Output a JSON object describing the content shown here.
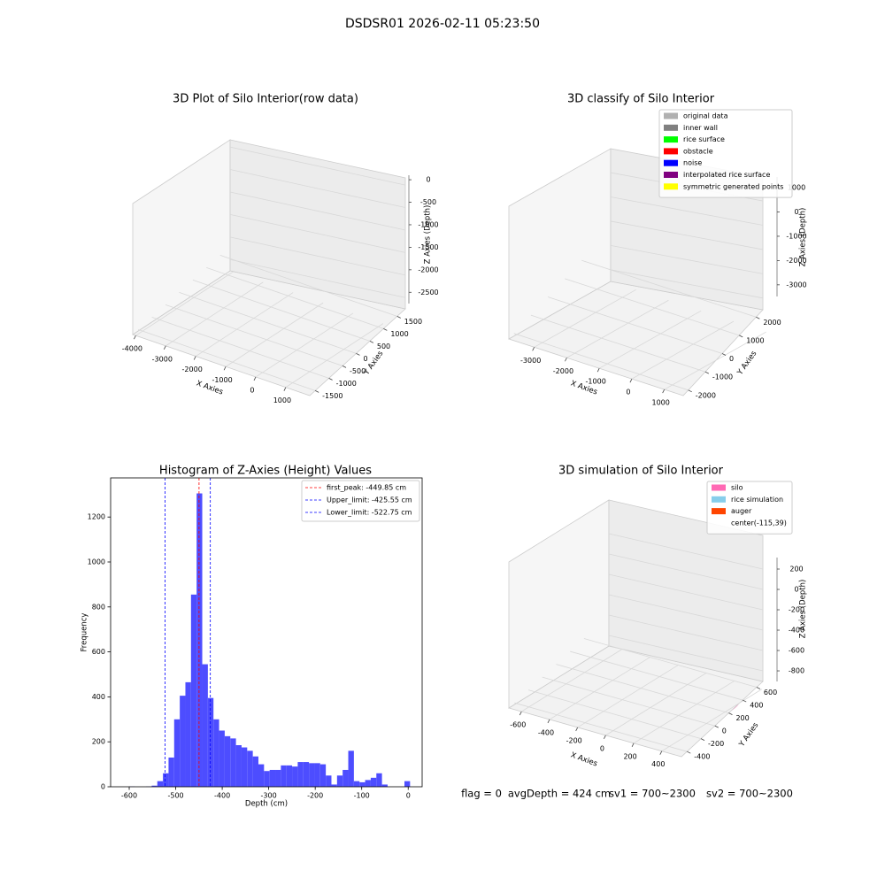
{
  "title": "DSDSR01 2026-02-11 05:23:50",
  "chart_data": [
    {
      "type": "scatter3d",
      "title": "3D Plot of Silo Interior(row data)",
      "xlabel": "X Axies",
      "ylabel": "Y Axies",
      "zlabel": "Z Axies (Depth)",
      "xlim": [
        -4100,
        1800
      ],
      "ylim": [
        -1700,
        1800
      ],
      "zlim": [
        -2750,
        100
      ],
      "xticks": [
        -4000,
        -3000,
        -2000,
        -1000,
        0,
        1000
      ],
      "yticks": [
        -1500,
        -1000,
        -500,
        0,
        500,
        1000,
        1500
      ],
      "zticks": [
        0,
        -500,
        -1000,
        -1500,
        -2000,
        -2500
      ]
    },
    {
      "type": "scatter3d",
      "title": "3D classify of Silo Interior",
      "xlabel": "X Axies",
      "ylabel": "Y Axies",
      "zlabel": "Z Axies (Depth)",
      "xlim": [
        -3780,
        1580
      ],
      "ylim": [
        -2300,
        2400
      ],
      "zlim": [
        -3480,
        1440
      ],
      "xticks": [
        -3000,
        -2000,
        -1000,
        0,
        1000
      ],
      "yticks": [
        -2000,
        -1000,
        0,
        1000,
        2000
      ],
      "zticks": [
        1000,
        0,
        -1000,
        -2000,
        -3000
      ],
      "legend": [
        {
          "name": "original data",
          "color": "#b0b0b0"
        },
        {
          "name": "inner wall",
          "color": "#808080"
        },
        {
          "name": "rice surface",
          "color": "#00ff00"
        },
        {
          "name": "obstacle",
          "color": "#ff0000"
        },
        {
          "name": "noise",
          "color": "#0000ff"
        },
        {
          "name": "interpolated rice surface",
          "color": "#800080"
        },
        {
          "name": "symmetric generated points",
          "color": "#ffff00"
        }
      ]
    },
    {
      "type": "histogram",
      "title": "Histogram of Z-Axies (Height) Values",
      "xlabel": "Depth (cm)",
      "ylabel": "Frequency",
      "color": "#4d4dff",
      "xlim": [
        -640,
        30
      ],
      "ylim": [
        0,
        1374
      ],
      "xticks": [
        -600,
        -500,
        -400,
        -300,
        -200,
        -100,
        0
      ],
      "yticks": [
        0,
        200,
        400,
        600,
        800,
        1000,
        1200
      ],
      "bins": [
        -600,
        -587.92,
        -575.84,
        -563.76,
        -551.68,
        -539.6,
        -527.52,
        -515.44,
        -503.36,
        -491.28,
        -479.2,
        -467.12,
        -455.04,
        -442.96,
        -430.88,
        -418.8,
        -406.72,
        -394.64,
        -382.56,
        -370.48,
        -358.4,
        -346.32,
        -334.24,
        -322.16,
        -310.08,
        -298,
        -285.92,
        -273.84,
        -261.76,
        -249.68,
        -237.6,
        -225.52,
        -213.44,
        -201.36,
        -189.28,
        -177.2,
        -165.12,
        -153.04,
        -140.96,
        -128.88,
        -116.8,
        -104.72,
        -92.64,
        -80.56,
        -68.48,
        -56.4,
        -44.32,
        -32.24,
        -20.16,
        -8.08,
        4
      ],
      "values": [
        1,
        0,
        0,
        1,
        5,
        25,
        60,
        130,
        300,
        405,
        465,
        855,
        1305,
        545,
        395,
        300,
        250,
        225,
        215,
        185,
        175,
        160,
        135,
        100,
        70,
        75,
        75,
        95,
        95,
        90,
        110,
        110,
        105,
        105,
        100,
        50,
        10,
        50,
        75,
        160,
        25,
        20,
        30,
        40,
        60,
        10,
        0,
        0,
        0,
        25
      ],
      "vlines": [
        {
          "value": -449.85,
          "label": "first_peak: -449.85 cm",
          "color": "#ff0000"
        },
        {
          "value": -425.55,
          "label": "Upper_limit: -425.55 cm",
          "color": "#0000ff"
        },
        {
          "value": -522.75,
          "label": "Lower_limit: -522.75 cm",
          "color": "#0000ff"
        }
      ]
    },
    {
      "type": "scatter3d",
      "title": "3D simulation of Silo Interior",
      "xlabel": "X Axies",
      "ylabel": "Y Axies",
      "zlabel": "Z Axies (Depth)",
      "xlim": [
        -690,
        540
      ],
      "ylim": [
        -480,
        690
      ],
      "zlim": [
        -904,
        313
      ],
      "xticks": [
        -600,
        -400,
        -200,
        0,
        200,
        400
      ],
      "yticks": [
        -400,
        -200,
        0,
        200,
        400,
        600
      ],
      "zticks": [
        200,
        0,
        -200,
        -400,
        -600,
        -800
      ],
      "legend": [
        {
          "name": "silo",
          "color": "#ff69b4"
        },
        {
          "name": "rice simulation",
          "color": "#87ceeb"
        },
        {
          "name": "auger",
          "color": "#ff4500"
        },
        {
          "name": "center(-115,39)"
        }
      ],
      "annotations": [
        "flag = 0",
        "avgDepth = 424 cm",
        "sv1 = 700~2300",
        "sv2 = 700~2300"
      ]
    }
  ]
}
